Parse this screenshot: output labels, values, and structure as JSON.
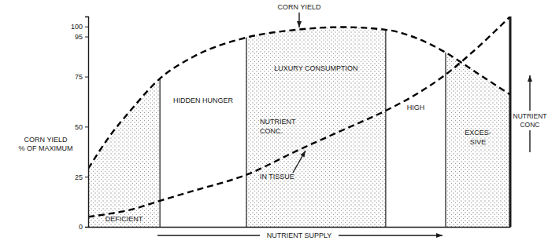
{
  "chart_data": {
    "type": "line",
    "x_label": "NUTRIENT SUPPLY",
    "y_label": [
      "CORN YIELD",
      "% OF MAXIMUM"
    ],
    "x": [
      0,
      5,
      10,
      17,
      25,
      37.5,
      50,
      60,
      70.5,
      78,
      84.7,
      92,
      100
    ],
    "series": [
      {
        "values": [
          29,
          45,
          58,
          74,
          85,
          94.5,
          98.5,
          99.7,
          98.4,
          94,
          87,
          77,
          66
        ],
        "color": "#000000",
        "line_style": "dashed"
      },
      {
        "values": [
          5,
          6.5,
          8.5,
          13,
          18,
          26,
          38.5,
          48,
          58,
          66.5,
          76,
          89,
          105
        ],
        "color": "#000000",
        "line_style": "dashed"
      }
    ],
    "regions": [
      {
        "label": [
          "DEFICIENT"
        ],
        "x": [
          0,
          17
        ],
        "color": "#8a8a8a"
      },
      {
        "label": [
          "HIDDEN HUNGER"
        ],
        "x": [
          17,
          37.5
        ],
        "color": "#ffffff"
      },
      {
        "label": [
          "LUXURY CONSUMPTION"
        ],
        "x": [
          37.5,
          70.5
        ],
        "color": "#8a8a8a"
      },
      {
        "label": [
          "HIGH"
        ],
        "x": [
          70.5,
          84.7
        ],
        "color": "#ffffff"
      },
      {
        "label": [
          "EXCES-",
          "SIVE"
        ],
        "x": [
          84.7,
          100
        ],
        "color": "#8a8a8a"
      }
    ],
    "annotations": [
      {
        "text": [
          "CORN YIELD"
        ]
      },
      {
        "text": [
          "NUTRIENT",
          "CONC.",
          "IN TISSUE"
        ]
      },
      {
        "text": [
          "NUTRIENT",
          "CONC"
        ]
      }
    ],
    "xlim": [
      0,
      100
    ],
    "ylim": [
      0,
      105
    ],
    "yticks": [
      0,
      25,
      50,
      75,
      95,
      100
    ],
    "tick_labels": "y",
    "grid": false
  }
}
